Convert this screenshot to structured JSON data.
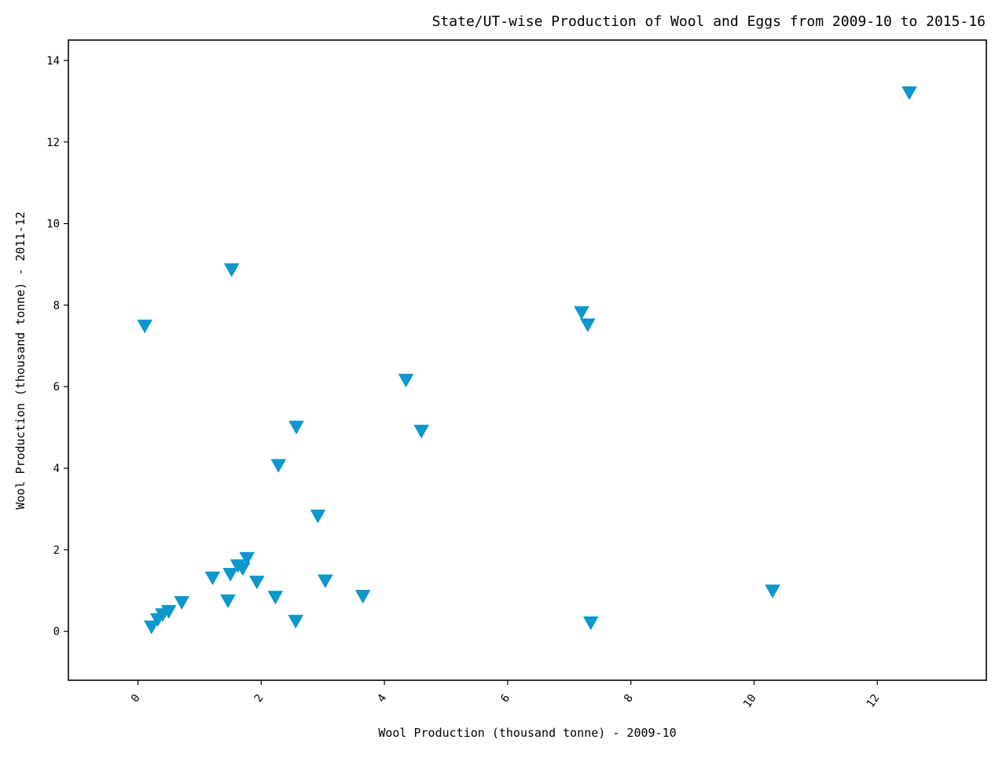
{
  "chart_data": {
    "type": "scatter",
    "title": "State/UT-wise Production of Wool and Eggs from 2009-10 to 2015-16",
    "xlabel": "Wool Production (thousand tonne) - 2009-10",
    "ylabel": "Wool Production (thousand tonne) - 2011-12",
    "xlim": [
      -1.13,
      13.77
    ],
    "ylim": [
      -1.2,
      14.5
    ],
    "x_ticks": [
      0,
      2,
      4,
      6,
      8,
      10,
      12
    ],
    "y_ticks": [
      0,
      2,
      4,
      6,
      8,
      10,
      12,
      14
    ],
    "x_tick_labels": [
      "0",
      "2",
      "4",
      "6",
      "8",
      "10",
      "12"
    ],
    "y_tick_labels": [
      "0",
      "2",
      "4",
      "6",
      "8",
      "10",
      "12",
      "14"
    ],
    "marker": "triangle-down",
    "marker_color": "#0e97cc",
    "grid": false,
    "points": [
      {
        "x": 0.11,
        "y": 7.5
      },
      {
        "x": 0.22,
        "y": 0.12
      },
      {
        "x": 0.32,
        "y": 0.3
      },
      {
        "x": 0.4,
        "y": 0.42
      },
      {
        "x": 0.5,
        "y": 0.5
      },
      {
        "x": 0.71,
        "y": 0.72
      },
      {
        "x": 1.21,
        "y": 1.32
      },
      {
        "x": 1.46,
        "y": 0.76
      },
      {
        "x": 1.5,
        "y": 1.41
      },
      {
        "x": 1.52,
        "y": 8.88
      },
      {
        "x": 1.62,
        "y": 1.62
      },
      {
        "x": 1.7,
        "y": 1.55
      },
      {
        "x": 1.77,
        "y": 1.8
      },
      {
        "x": 1.93,
        "y": 1.22
      },
      {
        "x": 2.23,
        "y": 0.85
      },
      {
        "x": 2.28,
        "y": 4.08
      },
      {
        "x": 2.56,
        "y": 0.26
      },
      {
        "x": 2.57,
        "y": 5.02
      },
      {
        "x": 2.92,
        "y": 2.84
      },
      {
        "x": 3.04,
        "y": 1.25
      },
      {
        "x": 3.65,
        "y": 0.87
      },
      {
        "x": 4.35,
        "y": 6.17
      },
      {
        "x": 4.6,
        "y": 4.92
      },
      {
        "x": 7.2,
        "y": 7.83
      },
      {
        "x": 7.3,
        "y": 7.53
      },
      {
        "x": 7.35,
        "y": 0.22
      },
      {
        "x": 10.3,
        "y": 1.0
      },
      {
        "x": 12.52,
        "y": 13.22
      }
    ]
  }
}
